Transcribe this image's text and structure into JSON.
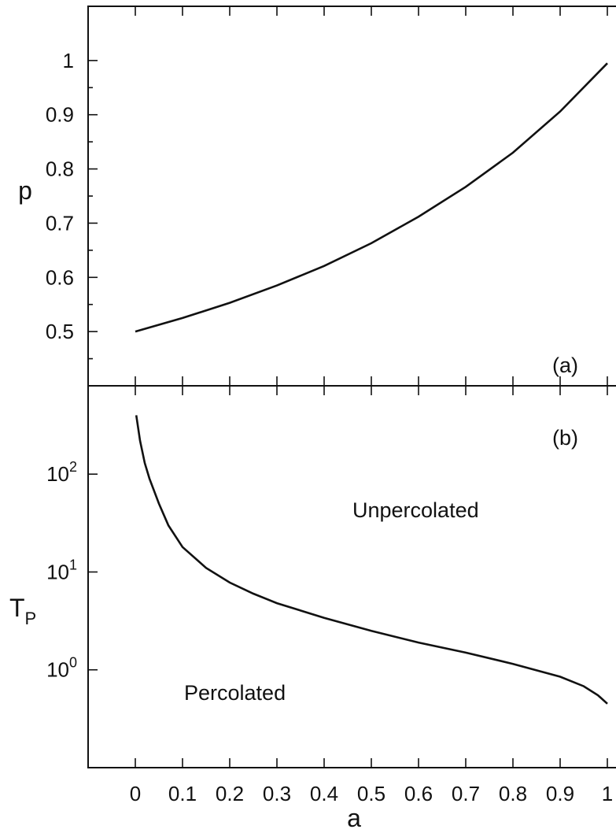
{
  "chart_data": [
    {
      "type": "line",
      "panel_label": "(a)",
      "xlabel": "a",
      "ylabel": "p",
      "xlim": [
        -0.1,
        1.05
      ],
      "ylim": [
        0.4,
        1.1
      ],
      "y_ticks": [
        0.5,
        0.6,
        0.7,
        0.8,
        0.9,
        1.0
      ],
      "y_tick_labels": [
        "0.5",
        "0.6",
        "0.7",
        "0.8",
        "0.9",
        "1"
      ],
      "series": [
        {
          "x": [
            0.0,
            0.1,
            0.2,
            0.3,
            0.4,
            0.5,
            0.6,
            0.7,
            0.8,
            0.9,
            1.0
          ],
          "y": [
            0.5,
            0.525,
            0.553,
            0.585,
            0.621,
            0.663,
            0.712,
            0.767,
            0.83,
            0.906,
            0.995
          ]
        }
      ]
    },
    {
      "type": "line",
      "panel_label": "(b)",
      "xlabel": "a",
      "ylabel_main": "T",
      "ylabel_sub": "P",
      "xlim": [
        -0.1,
        1.05
      ],
      "ylim": [
        0.1,
        800
      ],
      "y_scale": "log",
      "y_ticks": [
        1,
        10,
        100
      ],
      "y_tick_labels": [
        {
          "base": "10",
          "exp": "0"
        },
        {
          "base": "10",
          "exp": "1"
        },
        {
          "base": "10",
          "exp": "2"
        }
      ],
      "x_ticks": [
        0,
        0.1,
        0.2,
        0.3,
        0.4,
        0.5,
        0.6,
        0.7,
        0.8,
        0.9,
        1
      ],
      "x_tick_labels": [
        "0",
        "0.1",
        "0.2",
        "0.3",
        "0.4",
        "0.5",
        "0.6",
        "0.7",
        "0.8",
        "0.9",
        "1"
      ],
      "region_labels": {
        "upper": "Unpercolated",
        "lower": "Percolated"
      },
      "series": [
        {
          "x": [
            0.002,
            0.01,
            0.02,
            0.03,
            0.05,
            0.07,
            0.1,
            0.15,
            0.2,
            0.25,
            0.3,
            0.4,
            0.5,
            0.6,
            0.7,
            0.8,
            0.9,
            0.95,
            0.98,
            1.0
          ],
          "y": [
            400,
            220,
            130,
            90,
            50,
            30,
            18,
            11,
            7.8,
            6.0,
            4.8,
            3.4,
            2.5,
            1.9,
            1.5,
            1.15,
            0.85,
            0.68,
            0.55,
            0.45
          ]
        }
      ]
    }
  ]
}
